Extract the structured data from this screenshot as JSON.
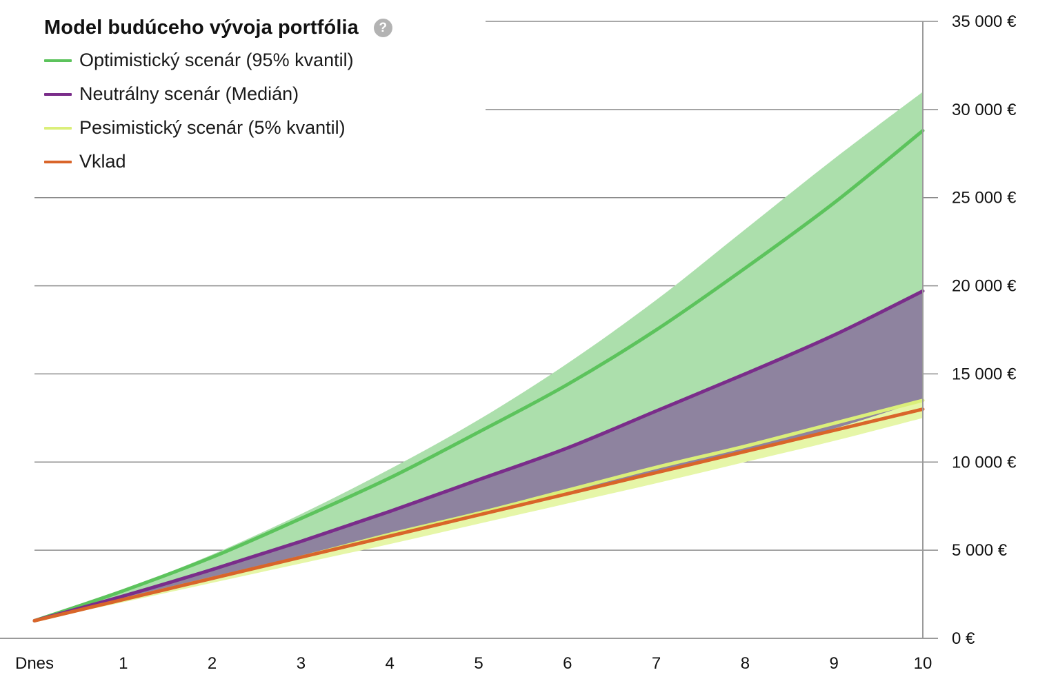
{
  "legend": {
    "title": "Model budúceho vývoja portfólia",
    "help_icon": "question-circle-icon",
    "items": [
      {
        "label": "Optimistický scenár (95% kvantil)",
        "color": "#5cc35c"
      },
      {
        "label": "Neutrálny scenár (Medián)",
        "color": "#7a2d8a"
      },
      {
        "label": "Pesimistický scenár (5% kvantil)",
        "color": "#dbef7a"
      },
      {
        "label": "Vklad",
        "color": "#d9652a"
      }
    ]
  },
  "chart_data": {
    "type": "area",
    "title": "Model budúceho vývoja portfólia",
    "xlabel": "",
    "ylabel": "",
    "categories": [
      "Dnes",
      "1",
      "2",
      "3",
      "4",
      "5",
      "6",
      "7",
      "8",
      "9",
      "10"
    ],
    "x": [
      0,
      1,
      2,
      3,
      4,
      5,
      6,
      7,
      8,
      9,
      10
    ],
    "y_ticks": [
      "0 €",
      "5 000 €",
      "10 000 €",
      "15 000 €",
      "20 000 €",
      "25 000 €",
      "30 000 €",
      "35 000 €"
    ],
    "ylim": [
      0,
      35000
    ],
    "y_axis_position": "right",
    "grid": true,
    "legend_position": "top-left",
    "series": [
      {
        "name": "Optimistický scenár (95% kvantil)",
        "color": "#5cc35c",
        "values": [
          1000,
          2700,
          4600,
          6800,
          9100,
          11700,
          14400,
          17500,
          21000,
          24700,
          28800
        ]
      },
      {
        "name": "Neutrálny scenár (Medián)",
        "color": "#7a2d8a",
        "values": [
          1000,
          2400,
          3900,
          5500,
          7200,
          9000,
          10800,
          12900,
          15000,
          17200,
          19700
        ]
      },
      {
        "name": "Pesimistický scenár (5% kvantil)",
        "color": "#dbef7a",
        "values": [
          1000,
          2200,
          3400,
          4600,
          5900,
          7100,
          8400,
          9700,
          10900,
          12200,
          13500
        ]
      },
      {
        "name": "Vklad",
        "color": "#d9652a",
        "values": [
          1000,
          2200,
          3400,
          4600,
          5800,
          7000,
          8200,
          9400,
          10600,
          11800,
          13000
        ]
      }
    ],
    "bands": [
      {
        "name": "Optimistický scenár (95% kvantil)",
        "color": "#acdfac",
        "upper": [
          1000,
          2750,
          4750,
          7050,
          9600,
          12400,
          15600,
          19200,
          23200,
          27200,
          31000
        ],
        "lower": [
          1000,
          2400,
          3900,
          5500,
          7200,
          9000,
          10800,
          12900,
          15000,
          17200,
          19700
        ]
      },
      {
        "name": "Neutrálny scenár (Medián)",
        "color": "#8e839f",
        "upper": [
          1000,
          2400,
          3900,
          5500,
          7200,
          9000,
          10800,
          12900,
          15000,
          17200,
          19700
        ],
        "lower": [
          1000,
          2200,
          3400,
          4600,
          5800,
          7000,
          8200,
          9400,
          10600,
          11800,
          13000
        ]
      },
      {
        "name": "Pesimistický scenár (5% kvantil)",
        "color": "#e6f6a8",
        "upper": [
          1000,
          2200,
          3400,
          4600,
          5800,
          7000,
          8200,
          9400,
          10600,
          11900,
          13500
        ],
        "lower": [
          1000,
          2050,
          3150,
          4250,
          5350,
          6500,
          7650,
          8800,
          10000,
          11200,
          12500
        ]
      }
    ]
  }
}
